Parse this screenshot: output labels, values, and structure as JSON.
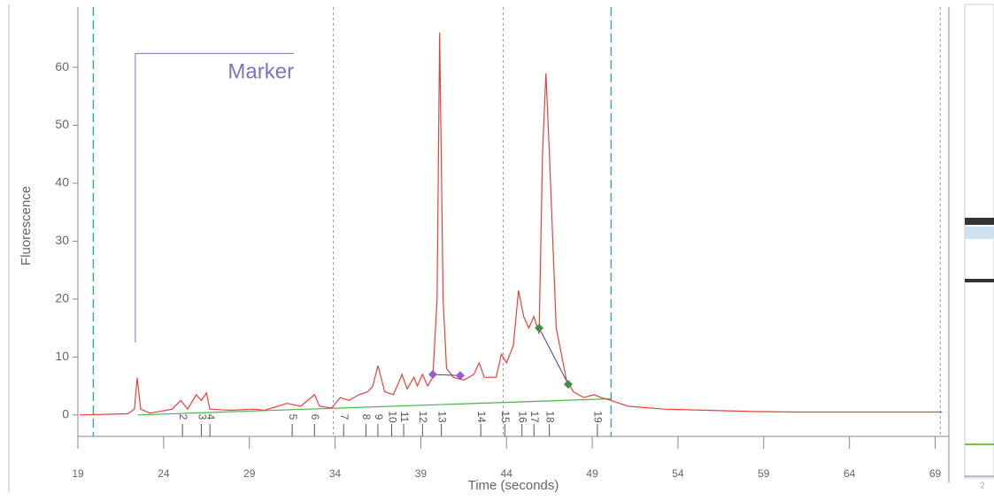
{
  "chart_data": {
    "type": "line",
    "x_label": "Time (seconds)",
    "y_label": "Fluorescence",
    "xlim": [
      19,
      69.8
    ],
    "ylim": [
      -3.7,
      70.4
    ],
    "xticks": [
      19,
      24,
      29,
      34,
      39,
      44,
      49,
      54,
      59,
      64,
      69
    ],
    "yticks": [
      0,
      10,
      20,
      30,
      40,
      50,
      60
    ],
    "color": "#e8413a",
    "x": [
      19.1,
      21.9,
      22.3,
      22.46,
      22.66,
      23.2,
      24.5,
      25.0,
      25.4,
      25.9,
      26.2,
      26.5,
      26.7,
      27.9,
      29.2,
      29.9,
      31.2,
      32.0,
      32.8,
      33.1,
      33.8,
      34.3,
      34.8,
      35.4,
      35.9,
      36.2,
      36.5,
      36.9,
      37.4,
      37.7,
      37.9,
      38.2,
      38.6,
      38.8,
      39.1,
      39.4,
      39.7,
      39.95,
      40.1,
      40.3,
      40.5,
      40.9,
      41.5,
      42.1,
      42.4,
      42.7,
      43.4,
      43.7,
      44.0,
      44.4,
      44.7,
      45.0,
      45.3,
      45.6,
      45.9,
      46.1,
      46.3,
      46.5,
      46.9,
      47.5,
      47.9,
      48.5,
      49.1,
      49.5,
      50.1,
      51.1,
      53.2,
      55.7,
      58.3,
      60.9,
      69.4
    ],
    "values": [
      0,
      0.2,
      1,
      6.4,
      1,
      0.3,
      1,
      2.5,
      1,
      3.5,
      2.5,
      3.8,
      1,
      0.8,
      1,
      0.8,
      2,
      1.5,
      3.5,
      1.5,
      1.2,
      3,
      2.5,
      3.5,
      4,
      5,
      8.5,
      4,
      3.5,
      5.5,
      7,
      4.5,
      6.5,
      5,
      7,
      5,
      6.5,
      20,
      66,
      20,
      8,
      6.5,
      6,
      7,
      9,
      6.5,
      6.5,
      10.5,
      9,
      12,
      21.5,
      17,
      15,
      17,
      14,
      45,
      59,
      45,
      15,
      6,
      4,
      3,
      3.5,
      3,
      2.5,
      1.5,
      1,
      0.8,
      0.6,
      0.5,
      0.5
    ],
    "baseline": {
      "x": [
        22.5,
        50.1
      ],
      "values": [
        0,
        2.8
      ],
      "color": "#4caf50"
    },
    "segments": [
      {
        "x": [
          39.7,
          41.3
        ],
        "values": [
          7,
          6.8
        ],
        "color": "#9b59d0"
      },
      {
        "x": [
          45.9,
          47.6
        ],
        "values": [
          15,
          5.3
        ],
        "color": "#3f8f4a"
      }
    ],
    "peaks": {
      "labels": [
        "2",
        "3",
        "4",
        "5",
        "6",
        "7",
        "8",
        "9",
        "10",
        "11",
        "12",
        "13",
        "14",
        "15",
        "16",
        "17",
        "18",
        "19"
      ],
      "x": [
        25.1,
        26.2,
        26.7,
        31.5,
        32.8,
        34.5,
        35.8,
        36.5,
        37.3,
        38.0,
        39.1,
        40.2,
        42.5,
        43.9,
        44.9,
        45.6,
        46.5,
        49.3
      ]
    },
    "marker": {
      "text": "Marker",
      "x": [
        22.35,
        31.6
      ],
      "y": [
        12.5,
        62.4
      ]
    },
    "ref_lines": [
      {
        "x": 19.9,
        "color": "#3aa6b9",
        "style": "dashed"
      },
      {
        "x": 50.1,
        "color": "#3aa6b9",
        "style": "dashed"
      },
      {
        "x": 33.9,
        "color": "#999999",
        "style": "dotted"
      },
      {
        "x": 43.8,
        "color": "#999999",
        "style": "dotted"
      },
      {
        "x": 69.3,
        "color": "#999999",
        "style": "dotted"
      }
    ]
  },
  "gel_label": "2"
}
